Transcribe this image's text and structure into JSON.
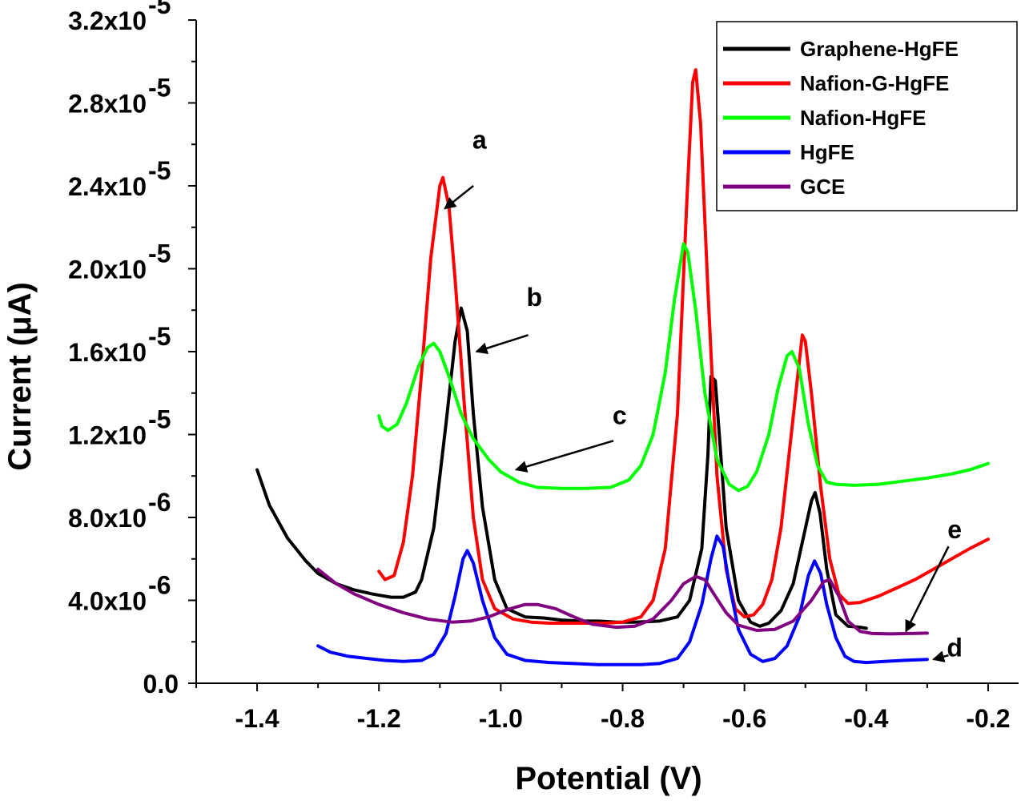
{
  "chart_data": {
    "type": "line",
    "xlabel": "Potential (V)",
    "ylabel": "Current (μA)",
    "xlim": [
      -1.5,
      -0.15
    ],
    "ylim": [
      0,
      3.2e-05
    ],
    "x_ticks": [
      -1.4,
      -1.2,
      -1.0,
      -0.8,
      -0.6,
      -0.4,
      -0.2
    ],
    "x_tick_labels": [
      "-1.4",
      "-1.2",
      "-1.0",
      "-0.8",
      "-0.6",
      "-0.4",
      "-0.2"
    ],
    "y_ticks": [
      0,
      4e-06,
      8e-06,
      1.2e-05,
      1.6e-05,
      2e-05,
      2.4e-05,
      2.8e-05,
      3.2e-05
    ],
    "y_tick_labels": [
      {
        "mantissa": "0.0",
        "exponent": ""
      },
      {
        "mantissa": "4.0x10",
        "exponent": "-6"
      },
      {
        "mantissa": "8.0x10",
        "exponent": "-6"
      },
      {
        "mantissa": "1.2x10",
        "exponent": "-5"
      },
      {
        "mantissa": "1.6x10",
        "exponent": "-5"
      },
      {
        "mantissa": "2.0x10",
        "exponent": "-5"
      },
      {
        "mantissa": "2.4x10",
        "exponent": "-5"
      },
      {
        "mantissa": "2.8x10",
        "exponent": "-5"
      },
      {
        "mantissa": "3.2x10",
        "exponent": "-5"
      }
    ],
    "legend_position": "top-right",
    "series": [
      {
        "name": "Graphene-HgFE",
        "color": "#000000",
        "points": [
          [
            -1.4,
            1.03e-05
          ],
          [
            -1.38,
            8.6e-06
          ],
          [
            -1.35,
            7e-06
          ],
          [
            -1.32,
            5.9e-06
          ],
          [
            -1.3,
            5.3e-06
          ],
          [
            -1.27,
            4.8e-06
          ],
          [
            -1.24,
            4.5e-06
          ],
          [
            -1.21,
            4.3e-06
          ],
          [
            -1.18,
            4.15e-06
          ],
          [
            -1.16,
            4.15e-06
          ],
          [
            -1.14,
            4.4e-06
          ],
          [
            -1.13,
            5e-06
          ],
          [
            -1.11,
            7.5e-06
          ],
          [
            -1.09,
            1.25e-05
          ],
          [
            -1.075,
            1.65e-05
          ],
          [
            -1.065,
            1.81e-05
          ],
          [
            -1.055,
            1.7e-05
          ],
          [
            -1.045,
            1.3e-05
          ],
          [
            -1.03,
            8.5e-06
          ],
          [
            -1.01,
            5e-06
          ],
          [
            -0.99,
            3.6e-06
          ],
          [
            -0.96,
            3.2e-06
          ],
          [
            -0.93,
            3.15e-06
          ],
          [
            -0.9,
            3.05e-06
          ],
          [
            -0.87,
            3e-06
          ],
          [
            -0.84,
            3e-06
          ],
          [
            -0.81,
            2.95e-06
          ],
          [
            -0.78,
            2.95e-06
          ],
          [
            -0.74,
            3e-06
          ],
          [
            -0.71,
            3.2e-06
          ],
          [
            -0.69,
            4e-06
          ],
          [
            -0.67,
            6.5e-06
          ],
          [
            -0.66,
            1.1e-05
          ],
          [
            -0.655,
            1.48e-05
          ],
          [
            -0.648,
            1.46e-05
          ],
          [
            -0.64,
            1.15e-05
          ],
          [
            -0.63,
            7.5e-06
          ],
          [
            -0.61,
            4e-06
          ],
          [
            -0.59,
            2.95e-06
          ],
          [
            -0.575,
            2.75e-06
          ],
          [
            -0.56,
            2.9e-06
          ],
          [
            -0.54,
            3.5e-06
          ],
          [
            -0.52,
            4.8e-06
          ],
          [
            -0.505,
            6.8e-06
          ],
          [
            -0.49,
            8.8e-06
          ],
          [
            -0.484,
            9.2e-06
          ],
          [
            -0.476,
            8.2e-06
          ],
          [
            -0.465,
            5.5e-06
          ],
          [
            -0.45,
            3.3e-06
          ],
          [
            -0.43,
            2.75e-06
          ],
          [
            -0.41,
            2.7e-06
          ],
          [
            -0.4,
            2.65e-06
          ]
        ]
      },
      {
        "name": "Nafion-G-HgFE",
        "color": "#ff0000",
        "points": [
          [
            -1.2,
            5.4e-06
          ],
          [
            -1.19,
            5e-06
          ],
          [
            -1.175,
            5.2e-06
          ],
          [
            -1.16,
            6.8e-06
          ],
          [
            -1.145,
            1e-05
          ],
          [
            -1.13,
            1.5e-05
          ],
          [
            -1.115,
            2.05e-05
          ],
          [
            -1.1,
            2.4e-05
          ],
          [
            -1.095,
            2.44e-05
          ],
          [
            -1.085,
            2.3e-05
          ],
          [
            -1.075,
            1.95e-05
          ],
          [
            -1.06,
            1.35e-05
          ],
          [
            -1.045,
            8e-06
          ],
          [
            -1.03,
            5e-06
          ],
          [
            -1.01,
            3.6e-06
          ],
          [
            -0.98,
            3.1e-06
          ],
          [
            -0.95,
            2.95e-06
          ],
          [
            -0.92,
            2.9e-06
          ],
          [
            -0.89,
            2.9e-06
          ],
          [
            -0.86,
            2.9e-06
          ],
          [
            -0.83,
            2.9e-06
          ],
          [
            -0.8,
            2.95e-06
          ],
          [
            -0.77,
            3.2e-06
          ],
          [
            -0.75,
            4e-06
          ],
          [
            -0.73,
            6.5e-06
          ],
          [
            -0.71,
            1.3e-05
          ],
          [
            -0.695,
            2.3e-05
          ],
          [
            -0.685,
            2.9e-05
          ],
          [
            -0.68,
            2.96e-05
          ],
          [
            -0.672,
            2.7e-05
          ],
          [
            -0.66,
            1.9e-05
          ],
          [
            -0.645,
            1e-05
          ],
          [
            -0.63,
            5.5e-06
          ],
          [
            -0.615,
            3.6e-06
          ],
          [
            -0.6,
            3.2e-06
          ],
          [
            -0.585,
            3.3e-06
          ],
          [
            -0.57,
            3.8e-06
          ],
          [
            -0.555,
            5e-06
          ],
          [
            -0.54,
            7.5e-06
          ],
          [
            -0.525,
            1.15e-05
          ],
          [
            -0.51,
            1.55e-05
          ],
          [
            -0.505,
            1.68e-05
          ],
          [
            -0.5,
            1.65e-05
          ],
          [
            -0.49,
            1.4e-05
          ],
          [
            -0.475,
            9.5e-06
          ],
          [
            -0.46,
            6e-06
          ],
          [
            -0.445,
            4.3e-06
          ],
          [
            -0.43,
            3.85e-06
          ],
          [
            -0.41,
            3.9e-06
          ],
          [
            -0.38,
            4.2e-06
          ],
          [
            -0.35,
            4.6e-06
          ],
          [
            -0.32,
            5e-06
          ],
          [
            -0.29,
            5.5e-06
          ],
          [
            -0.26,
            6e-06
          ],
          [
            -0.23,
            6.5e-06
          ],
          [
            -0.2,
            6.95e-06
          ]
        ]
      },
      {
        "name": "Nafion-HgFE",
        "color": "#00ff00",
        "points": [
          [
            -1.2,
            1.29e-05
          ],
          [
            -1.195,
            1.24e-05
          ],
          [
            -1.185,
            1.22e-05
          ],
          [
            -1.17,
            1.25e-05
          ],
          [
            -1.155,
            1.35e-05
          ],
          [
            -1.135,
            1.53e-05
          ],
          [
            -1.12,
            1.62e-05
          ],
          [
            -1.11,
            1.64e-05
          ],
          [
            -1.1,
            1.6e-05
          ],
          [
            -1.085,
            1.48e-05
          ],
          [
            -1.065,
            1.3e-05
          ],
          [
            -1.045,
            1.18e-05
          ],
          [
            -1.02,
            1.08e-05
          ],
          [
            -1.0,
            1.02e-05
          ],
          [
            -0.97,
            9.7e-06
          ],
          [
            -0.94,
            9.45e-06
          ],
          [
            -0.9,
            9.4e-06
          ],
          [
            -0.86,
            9.4e-06
          ],
          [
            -0.82,
            9.45e-06
          ],
          [
            -0.79,
            9.8e-06
          ],
          [
            -0.77,
            1.05e-05
          ],
          [
            -0.75,
            1.2e-05
          ],
          [
            -0.73,
            1.5e-05
          ],
          [
            -0.715,
            1.85e-05
          ],
          [
            -0.7,
            2.12e-05
          ],
          [
            -0.693,
            2.08e-05
          ],
          [
            -0.68,
            1.8e-05
          ],
          [
            -0.665,
            1.4e-05
          ],
          [
            -0.645,
            1.08e-05
          ],
          [
            -0.625,
            9.6e-06
          ],
          [
            -0.61,
            9.3e-06
          ],
          [
            -0.595,
            9.5e-06
          ],
          [
            -0.58,
            1.02e-05
          ],
          [
            -0.56,
            1.2e-05
          ],
          [
            -0.545,
            1.42e-05
          ],
          [
            -0.53,
            1.58e-05
          ],
          [
            -0.522,
            1.6e-05
          ],
          [
            -0.51,
            1.52e-05
          ],
          [
            -0.495,
            1.25e-05
          ],
          [
            -0.48,
            1.05e-05
          ],
          [
            -0.465,
            9.7e-06
          ],
          [
            -0.45,
            9.6e-06
          ],
          [
            -0.42,
            9.55e-06
          ],
          [
            -0.38,
            9.6e-06
          ],
          [
            -0.34,
            9.75e-06
          ],
          [
            -0.3,
            9.9e-06
          ],
          [
            -0.26,
            1.01e-05
          ],
          [
            -0.23,
            1.03e-05
          ],
          [
            -0.2,
            1.06e-05
          ]
        ]
      },
      {
        "name": "HgFE",
        "color": "#0000ff",
        "points": [
          [
            -1.3,
            1.8e-06
          ],
          [
            -1.28,
            1.5e-06
          ],
          [
            -1.25,
            1.3e-06
          ],
          [
            -1.22,
            1.2e-06
          ],
          [
            -1.19,
            1.1e-06
          ],
          [
            -1.16,
            1.05e-06
          ],
          [
            -1.13,
            1.1e-06
          ],
          [
            -1.11,
            1.4e-06
          ],
          [
            -1.09,
            2.4e-06
          ],
          [
            -1.075,
            4.2e-06
          ],
          [
            -1.062,
            6e-06
          ],
          [
            -1.055,
            6.4e-06
          ],
          [
            -1.045,
            5.8e-06
          ],
          [
            -1.03,
            4e-06
          ],
          [
            -1.01,
            2.2e-06
          ],
          [
            -0.99,
            1.4e-06
          ],
          [
            -0.96,
            1.1e-06
          ],
          [
            -0.92,
            1e-06
          ],
          [
            -0.88,
            9.5e-07
          ],
          [
            -0.84,
            9e-07
          ],
          [
            -0.8,
            9e-07
          ],
          [
            -0.77,
            9e-07
          ],
          [
            -0.74,
            9.5e-07
          ],
          [
            -0.71,
            1.2e-06
          ],
          [
            -0.69,
            2e-06
          ],
          [
            -0.67,
            3.8e-06
          ],
          [
            -0.655,
            6e-06
          ],
          [
            -0.645,
            7.1e-06
          ],
          [
            -0.635,
            6.6e-06
          ],
          [
            -0.625,
            4.8e-06
          ],
          [
            -0.61,
            2.6e-06
          ],
          [
            -0.59,
            1.4e-06
          ],
          [
            -0.57,
            1.05e-06
          ],
          [
            -0.55,
            1.2e-06
          ],
          [
            -0.53,
            1.8e-06
          ],
          [
            -0.51,
            3.2e-06
          ],
          [
            -0.495,
            5.2e-06
          ],
          [
            -0.485,
            5.9e-06
          ],
          [
            -0.475,
            5.3e-06
          ],
          [
            -0.465,
            3.8e-06
          ],
          [
            -0.45,
            2.2e-06
          ],
          [
            -0.435,
            1.3e-06
          ],
          [
            -0.42,
            1.05e-06
          ],
          [
            -0.4,
            1e-06
          ],
          [
            -0.37,
            1.05e-06
          ],
          [
            -0.34,
            1.1e-06
          ],
          [
            -0.3,
            1.15e-06
          ]
        ]
      },
      {
        "name": "GCE",
        "color": "#800080",
        "points": [
          [
            -1.3,
            5.5e-06
          ],
          [
            -1.27,
            4.8e-06
          ],
          [
            -1.24,
            4.3e-06
          ],
          [
            -1.2,
            3.8e-06
          ],
          [
            -1.16,
            3.4e-06
          ],
          [
            -1.12,
            3.1e-06
          ],
          [
            -1.08,
            2.95e-06
          ],
          [
            -1.05,
            3e-06
          ],
          [
            -1.02,
            3.2e-06
          ],
          [
            -0.99,
            3.55e-06
          ],
          [
            -0.96,
            3.8e-06
          ],
          [
            -0.94,
            3.8e-06
          ],
          [
            -0.91,
            3.6e-06
          ],
          [
            -0.88,
            3.2e-06
          ],
          [
            -0.85,
            2.85e-06
          ],
          [
            -0.81,
            2.7e-06
          ],
          [
            -0.78,
            2.75e-06
          ],
          [
            -0.75,
            3.1e-06
          ],
          [
            -0.72,
            4e-06
          ],
          [
            -0.7,
            4.8e-06
          ],
          [
            -0.68,
            5.15e-06
          ],
          [
            -0.665,
            5e-06
          ],
          [
            -0.65,
            4.3e-06
          ],
          [
            -0.63,
            3.4e-06
          ],
          [
            -0.61,
            2.8e-06
          ],
          [
            -0.58,
            2.55e-06
          ],
          [
            -0.55,
            2.6e-06
          ],
          [
            -0.52,
            3e-06
          ],
          [
            -0.49,
            4e-06
          ],
          [
            -0.47,
            4.9e-06
          ],
          [
            -0.46,
            5e-06
          ],
          [
            -0.445,
            4.2e-06
          ],
          [
            -0.43,
            3e-06
          ],
          [
            -0.41,
            2.5e-06
          ],
          [
            -0.39,
            2.4e-06
          ],
          [
            -0.36,
            2.38e-06
          ],
          [
            -0.33,
            2.4e-06
          ],
          [
            -0.3,
            2.42e-06
          ]
        ]
      }
    ],
    "annotations": [
      {
        "label": "a",
        "text_at": [
          -1.035,
          2.58e-05
        ],
        "arrow_from": [
          -1.045,
          2.4e-05
        ],
        "arrow_to": [
          -1.092,
          2.29e-05
        ]
      },
      {
        "label": "b",
        "text_at": [
          -0.945,
          1.82e-05
        ],
        "arrow_from": [
          -0.955,
          1.68e-05
        ],
        "arrow_to": [
          -1.04,
          1.6e-05
        ]
      },
      {
        "label": "c",
        "text_at": [
          -0.805,
          1.25e-05
        ],
        "arrow_from": [
          -0.815,
          1.17e-05
        ],
        "arrow_to": [
          -0.975,
          1.03e-05
        ]
      },
      {
        "label": "d",
        "text_at": [
          -0.255,
          1.3e-06
        ],
        "arrow_from": [
          -0.265,
          1.35e-06
        ],
        "arrow_to": [
          -0.29,
          1.15e-06
        ]
      },
      {
        "label": "e",
        "text_at": [
          -0.255,
          7e-06
        ],
        "arrow_from": [
          -0.265,
          6.6e-06
        ],
        "arrow_to": [
          -0.335,
          2.5e-06
        ]
      }
    ]
  }
}
